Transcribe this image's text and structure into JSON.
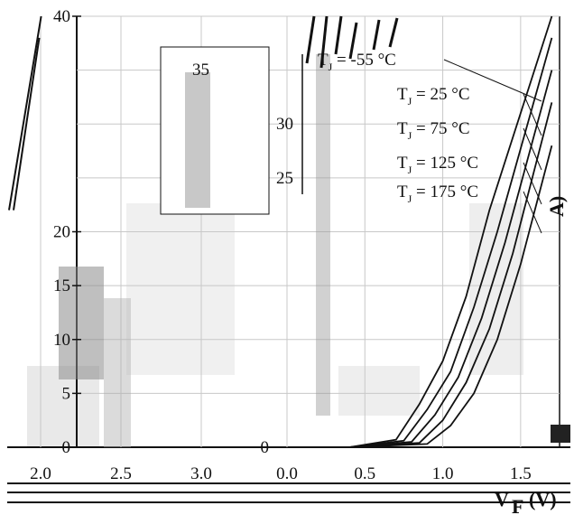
{
  "chart_data": [
    {
      "type": "line",
      "title": "",
      "xlabel": "VF (V)",
      "ylabel": "",
      "xlim": [
        2.0,
        3.0
      ],
      "ylim": [
        0,
        40
      ],
      "x_ticks": [
        "2.0",
        "2.5",
        "3.0"
      ],
      "y_ticks": [
        "40",
        "20",
        "15",
        "10",
        "5",
        "0"
      ],
      "grid": true,
      "series": [
        {
          "x": [
            2.0,
            2.1,
            2.2
          ],
          "y": [
            22,
            31,
            40
          ]
        },
        {
          "x": [
            2.0,
            2.08,
            2.16
          ],
          "y": [
            22,
            30,
            38
          ]
        }
      ]
    },
    {
      "type": "line",
      "title": "",
      "xlabel": "VF (V)",
      "ylabel": "A)",
      "xlim": [
        0.0,
        1.75
      ],
      "ylim": [
        0,
        40
      ],
      "x_ticks": [
        "0.0",
        "0.5",
        "1.0",
        "1.5"
      ],
      "y_ticks": [
        "0",
        "25",
        "30",
        "35"
      ],
      "grid": true,
      "legend_position": "top-right",
      "annotations": [
        {
          "prefix": "T",
          "sub": "J",
          "value": "= -55 °C"
        },
        {
          "prefix": "T",
          "sub": "J",
          "value": "= 25 °C"
        },
        {
          "prefix": "T",
          "sub": "J",
          "value": "= 75 °C"
        },
        {
          "prefix": "T",
          "sub": "J",
          "value": "= 125 °C"
        },
        {
          "prefix": "T",
          "sub": "J",
          "value": "= 175 °C"
        }
      ],
      "series": [
        {
          "name": "TJ = -55 °C",
          "x": [
            0.4,
            0.9,
            1.05,
            1.2,
            1.35,
            1.5,
            1.7
          ],
          "y": [
            0,
            0.3,
            2,
            5,
            10,
            17,
            28
          ]
        },
        {
          "name": "TJ = 25 °C",
          "x": [
            0.4,
            0.85,
            1.0,
            1.15,
            1.3,
            1.45,
            1.7
          ],
          "y": [
            0,
            0.4,
            2.5,
            6,
            11,
            18,
            32
          ]
        },
        {
          "name": "TJ = 75 °C",
          "x": [
            0.4,
            0.8,
            0.95,
            1.1,
            1.25,
            1.4,
            1.7
          ],
          "y": [
            0,
            0.5,
            3,
            6.5,
            12,
            19,
            35
          ]
        },
        {
          "name": "TJ = 125 °C",
          "x": [
            0.4,
            0.75,
            0.9,
            1.05,
            1.2,
            1.35,
            1.7
          ],
          "y": [
            0,
            0.6,
            3.5,
            7,
            13,
            20,
            38
          ]
        },
        {
          "name": "TJ = 175 °C",
          "x": [
            0.4,
            0.7,
            0.85,
            1.0,
            1.15,
            1.3,
            1.7
          ],
          "y": [
            0,
            0.7,
            4,
            8,
            14,
            22,
            40
          ]
        }
      ]
    }
  ],
  "footer": {
    "axis_label_main": "V",
    "axis_label_sub": "F",
    "axis_label_unit": "(V)"
  },
  "colors": {
    "axis": "#111111",
    "grid": "#c8c8c8",
    "curve": "#111111",
    "panel": "#ffffff",
    "patch": "#e6e6e6"
  }
}
